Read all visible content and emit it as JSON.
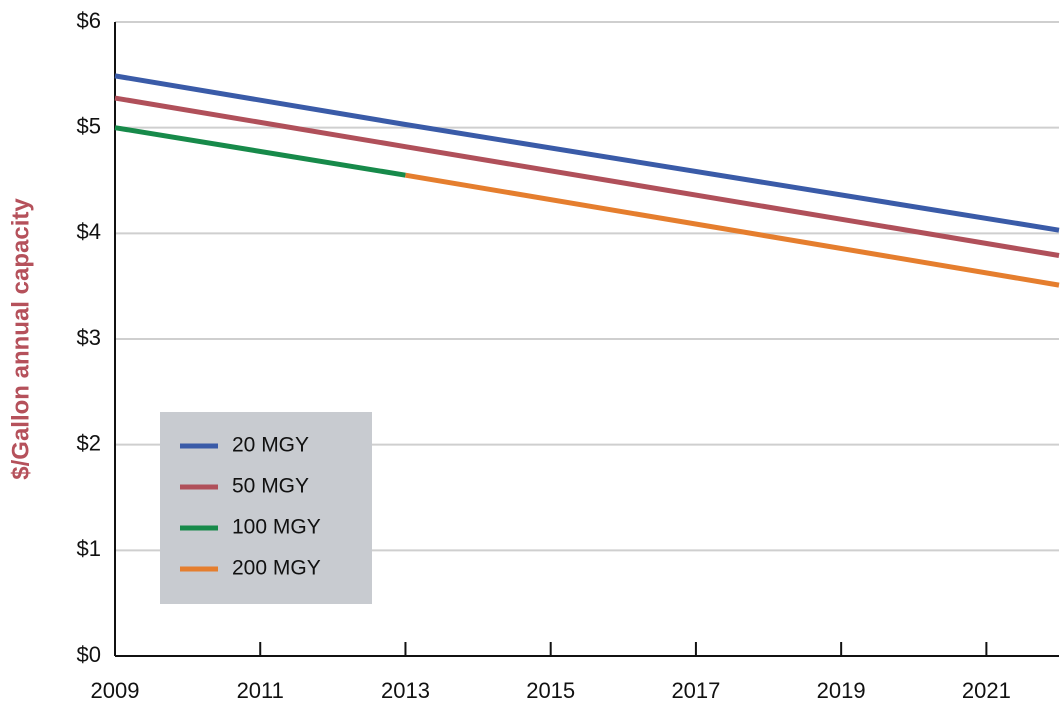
{
  "chart_data": {
    "type": "line",
    "y_label": "$/Gallon annual capacity",
    "x": [
      2009,
      2013,
      2022
    ],
    "series": [
      {
        "name": "20 MGY",
        "color": "#3a5ba8",
        "values": [
          5.49,
          5.03,
          4.03
        ]
      },
      {
        "name": "50 MGY",
        "color": "#b0505a",
        "values": [
          5.28,
          4.82,
          3.79
        ]
      },
      {
        "name": "100 MGY",
        "color": "#178a4a",
        "values": [
          5.0,
          4.55,
          null
        ]
      },
      {
        "name": "200 MGY",
        "color": "#e57e2e",
        "values": [
          null,
          4.55,
          3.51
        ]
      }
    ],
    "xlim": [
      2009,
      2022
    ],
    "xticks": [
      2009,
      2011,
      2013,
      2015,
      2017,
      2019,
      2021
    ],
    "ylim": [
      0,
      6
    ],
    "yticks": [
      {
        "value": 0,
        "label": "$0"
      },
      {
        "value": 1,
        "label": "$1"
      },
      {
        "value": 2,
        "label": "$2"
      },
      {
        "value": 3,
        "label": "$3"
      },
      {
        "value": 4,
        "label": "$4"
      },
      {
        "value": 5,
        "label": "$5"
      },
      {
        "value": 6,
        "label": "$6"
      }
    ],
    "grid": true,
    "legend": "lower left"
  }
}
